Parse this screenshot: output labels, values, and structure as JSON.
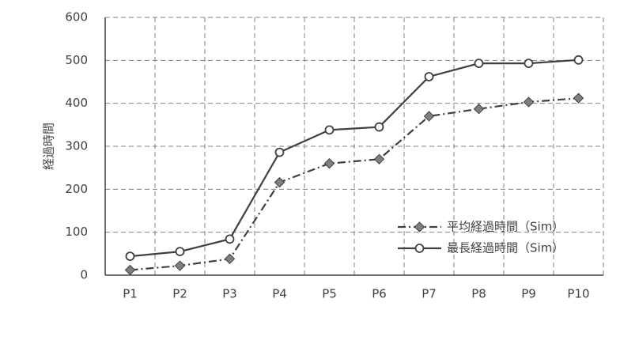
{
  "chart_data": {
    "type": "line",
    "y_label": "経過時間",
    "categories": [
      "P1",
      "P2",
      "P3",
      "P4",
      "P5",
      "P6",
      "P7",
      "P8",
      "P9",
      "P10"
    ],
    "series": [
      {
        "name": "平均経過時間（Sim）",
        "color": "#404040",
        "marker": "diamond",
        "marker_fill": "#7f7f7f",
        "line_style": "dashdot",
        "values": [
          12,
          22,
          38,
          216,
          260,
          270,
          370,
          387,
          403,
          412
        ]
      },
      {
        "name": "最長経過時間（Sim）",
        "color": "#404040",
        "marker": "circle",
        "marker_fill": "#ffffff",
        "line_style": "solid",
        "values": [
          44,
          55,
          84,
          286,
          338,
          345,
          462,
          493,
          493,
          501
        ]
      }
    ],
    "ylim": [
      0,
      600
    ],
    "yticks": [
      0,
      100,
      200,
      300,
      400,
      500,
      600
    ],
    "grid": true,
    "legend": "lower right"
  }
}
